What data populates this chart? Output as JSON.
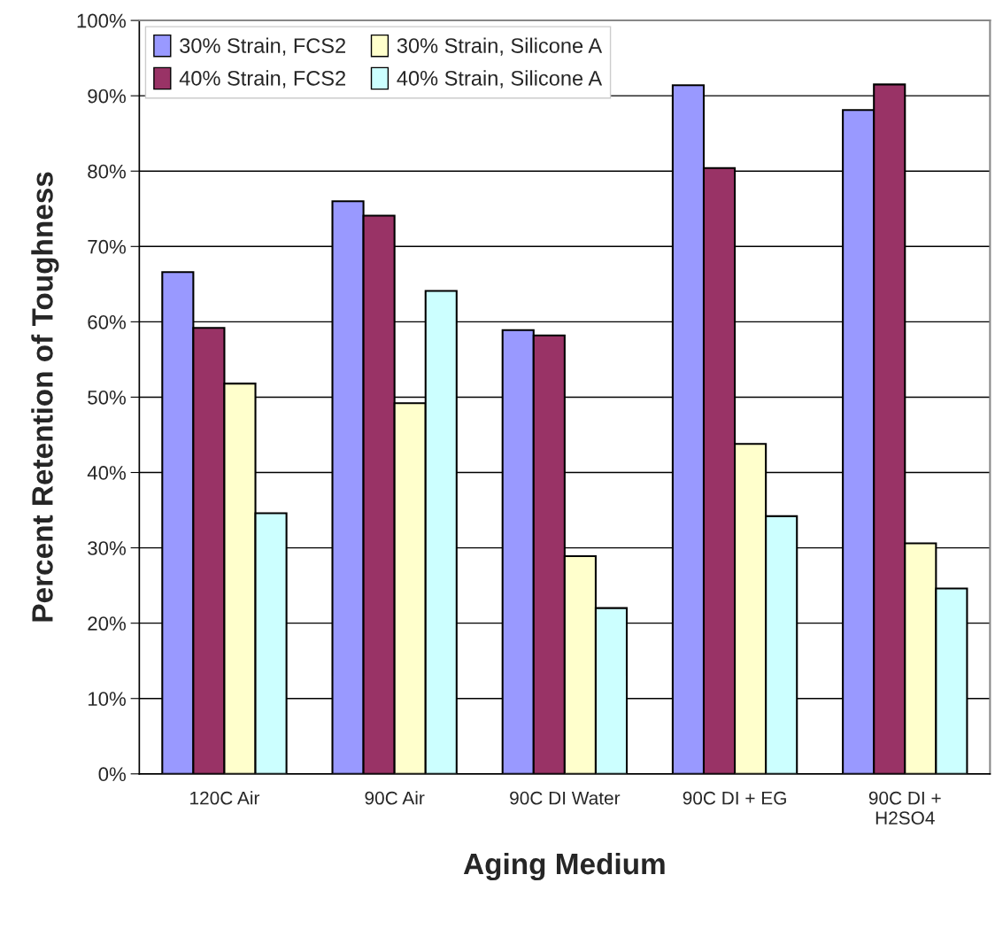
{
  "chart_data": {
    "type": "bar",
    "xlabel": "Aging Medium",
    "ylabel": "Percent Retention of Toughness",
    "categories": [
      "120C Air",
      "90C Air",
      "90C DI Water",
      "90C DI + EG",
      "90C DI +\nH2SO4"
    ],
    "series": [
      {
        "name": "30% Strain, FCS2",
        "color": "#9999ff",
        "values": [
          66.6,
          76.0,
          58.9,
          91.4,
          88.1
        ]
      },
      {
        "name": "40% Strain, FCS2",
        "color": "#993366",
        "values": [
          59.2,
          74.1,
          58.2,
          80.4,
          91.5
        ]
      },
      {
        "name": "30% Strain, Silicone A",
        "color": "#ffffcc",
        "values": [
          51.8,
          49.2,
          28.9,
          43.8,
          30.6
        ]
      },
      {
        "name": "40% Strain, Silicone A",
        "color": "#ccffff",
        "values": [
          34.6,
          64.1,
          22.0,
          34.2,
          24.6
        ]
      }
    ],
    "ylim": [
      0,
      100
    ],
    "yticks": [
      {
        "value": 0,
        "label": "0%"
      },
      {
        "value": 10,
        "label": "10%"
      },
      {
        "value": 20,
        "label": "20%"
      },
      {
        "value": 30,
        "label": "30%"
      },
      {
        "value": 40,
        "label": "40%"
      },
      {
        "value": 50,
        "label": "50%"
      },
      {
        "value": 60,
        "label": "60%"
      },
      {
        "value": 70,
        "label": "70%"
      },
      {
        "value": 80,
        "label": "80%"
      },
      {
        "value": 90,
        "label": "90%"
      },
      {
        "value": 100,
        "label": "100%"
      }
    ],
    "grid": "y",
    "legend": "top left"
  }
}
